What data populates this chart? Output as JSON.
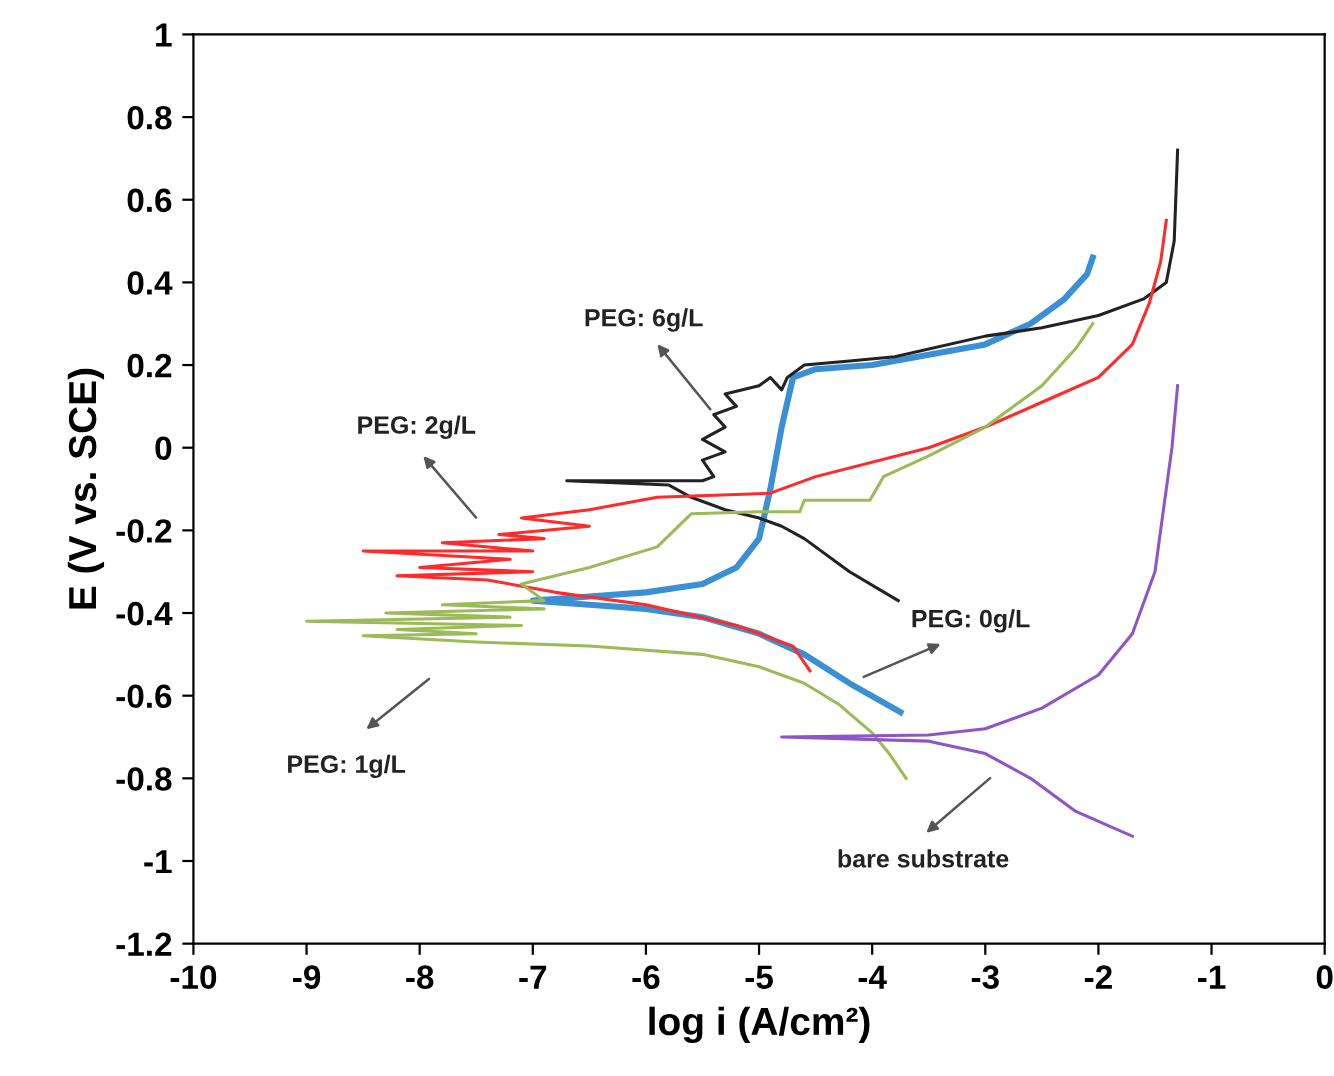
{
  "chart_data": {
    "type": "line",
    "xlabel": "log i (A/cm²)",
    "ylabel": "E (V vs. SCE)",
    "xlim": [
      -10,
      0
    ],
    "xticks": [
      -10,
      -9,
      -8,
      -7,
      -6,
      -5,
      -4,
      -3,
      -2,
      -1,
      0
    ],
    "ylim": [
      -1.2,
      1
    ],
    "yticks": [
      -1.2,
      -1,
      -0.8,
      -0.6,
      -0.4,
      -0.2,
      0,
      0.2,
      0.4,
      0.6,
      0.8,
      1
    ],
    "grid": false,
    "legend": false,
    "marker": "none",
    "line_style": "solid",
    "series": [
      {
        "color": "#222222",
        "x": [
          -3.77,
          -4.2,
          -4.6,
          -4.8,
          -5.0,
          -5.3,
          -5.6,
          -5.8,
          -6.7,
          -5.5,
          -5.4,
          -5.5,
          -5.3,
          -5.5,
          -5.3,
          -5.4,
          -5.2,
          -5.3,
          -5.0,
          -4.9,
          -4.8,
          -4.75,
          -4.6,
          -4.2,
          -3.8,
          -3.0,
          -2.5,
          -2.0,
          -1.6,
          -1.4,
          -1.33,
          -1.3
        ],
        "values": [
          -0.37,
          -0.3,
          -0.22,
          -0.19,
          -0.17,
          -0.15,
          -0.12,
          -0.09,
          -0.08,
          -0.08,
          -0.07,
          -0.03,
          -0.01,
          0.02,
          0.05,
          0.08,
          0.1,
          0.13,
          0.15,
          0.17,
          0.14,
          0.17,
          0.2,
          0.21,
          0.22,
          0.27,
          0.29,
          0.32,
          0.36,
          0.4,
          0.5,
          0.72
        ]
      },
      {
        "color": "#3b8fd4",
        "x": [
          -3.75,
          -4.2,
          -4.6,
          -5.0,
          -5.5,
          -6.0,
          -6.5,
          -7.0,
          -6.5,
          -6.0,
          -5.5,
          -5.2,
          -5.0,
          -4.9,
          -4.8,
          -4.7,
          -4.5,
          -4.0,
          -3.0,
          -2.6,
          -2.3,
          -2.1,
          -2.05
        ],
        "values": [
          -0.64,
          -0.57,
          -0.5,
          -0.45,
          -0.41,
          -0.39,
          -0.38,
          -0.37,
          -0.36,
          -0.35,
          -0.33,
          -0.29,
          -0.22,
          -0.1,
          0.05,
          0.17,
          0.19,
          0.2,
          0.25,
          0.3,
          0.36,
          0.42,
          0.46
        ]
      },
      {
        "color": "#ff2a2a",
        "x": [
          -4.55,
          -4.7,
          -5.2,
          -6.0,
          -6.8,
          -7.4,
          -8.2,
          -7.0,
          -8.0,
          -7.2,
          -8.5,
          -7.0,
          -7.8,
          -6.9,
          -7.3,
          -6.5,
          -7.1,
          -6.5,
          -5.9,
          -4.9,
          -4.5,
          -3.5,
          -3.0,
          -2.5,
          -2.0,
          -1.7,
          -1.55,
          -1.45,
          -1.4
        ],
        "values": [
          -0.54,
          -0.48,
          -0.43,
          -0.38,
          -0.35,
          -0.32,
          -0.31,
          -0.3,
          -0.29,
          -0.27,
          -0.25,
          -0.25,
          -0.23,
          -0.22,
          -0.21,
          -0.19,
          -0.17,
          -0.15,
          -0.12,
          -0.11,
          -0.07,
          0.0,
          0.05,
          0.11,
          0.17,
          0.25,
          0.35,
          0.45,
          0.55
        ]
      },
      {
        "color": "#9bbb59",
        "x": [
          -3.7,
          -3.85,
          -4.0,
          -4.3,
          -4.6,
          -5.0,
          -5.5,
          -6.5,
          -7.5,
          -8.5,
          -7.5,
          -8.2,
          -7.1,
          -9.0,
          -7.2,
          -8.3,
          -6.9,
          -7.8,
          -6.9,
          -7.1,
          -6.5,
          -5.9,
          -5.6,
          -5.0,
          -4.64,
          -4.6,
          -4.02,
          -3.9,
          -3.5,
          -3.0,
          -2.5,
          -2.2,
          -2.05
        ],
        "values": [
          -0.8,
          -0.74,
          -0.69,
          -0.62,
          -0.57,
          -0.53,
          -0.5,
          -0.48,
          -0.47,
          -0.455,
          -0.45,
          -0.44,
          -0.43,
          -0.42,
          -0.41,
          -0.4,
          -0.39,
          -0.38,
          -0.37,
          -0.33,
          -0.29,
          -0.24,
          -0.16,
          -0.155,
          -0.155,
          -0.127,
          -0.127,
          -0.07,
          -0.02,
          0.05,
          0.15,
          0.24,
          0.3
        ]
      },
      {
        "color": "#8e55c9",
        "x": [
          -1.7,
          -2.2,
          -2.6,
          -3.0,
          -3.5,
          -4.8,
          -3.5,
          -3.0,
          -2.5,
          -2.0,
          -1.7,
          -1.5,
          -1.4,
          -1.35,
          -1.3
        ],
        "values": [
          -0.94,
          -0.88,
          -0.8,
          -0.74,
          -0.71,
          -0.7,
          -0.695,
          -0.68,
          -0.63,
          -0.55,
          -0.45,
          -0.3,
          -0.1,
          0.0,
          0.15
        ]
      }
    ],
    "annotations": [
      "PEG: 6g/L",
      "PEG: 2g/L",
      "PEG: 1g/L",
      "PEG: 0g/L",
      "bare substrate"
    ]
  }
}
